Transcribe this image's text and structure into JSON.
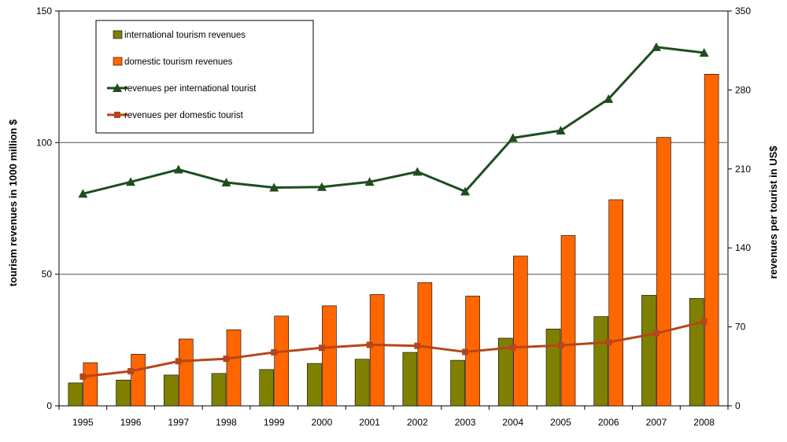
{
  "chart_data": {
    "type": "bar",
    "categories": [
      "1995",
      "1996",
      "1997",
      "1998",
      "1999",
      "2000",
      "2001",
      "2002",
      "2003",
      "2004",
      "2005",
      "2006",
      "2007",
      "2008"
    ],
    "series": [
      {
        "name": "international tourism revenues",
        "kind": "bar",
        "axis": "left",
        "color": "#808000",
        "values": [
          8.7,
          9.8,
          11.7,
          12.3,
          13.8,
          16.1,
          17.7,
          20.3,
          17.3,
          25.7,
          29.2,
          33.9,
          42.0,
          40.8
        ]
      },
      {
        "name": "domestic tourism revenues",
        "kind": "bar",
        "axis": "left",
        "color": "#FF6600",
        "values": [
          16.4,
          19.6,
          25.4,
          28.9,
          34.1,
          38.0,
          42.3,
          46.8,
          41.7,
          56.9,
          64.7,
          78.3,
          102.0,
          126.0
        ]
      },
      {
        "name": "revenues per international tourist",
        "kind": "line",
        "axis": "right",
        "color": "#1E4D1E",
        "marker": "triangle",
        "values": [
          188,
          198.5,
          209.5,
          198,
          193.5,
          194,
          198.5,
          207.5,
          190,
          237.5,
          244,
          272,
          318,
          313
        ]
      },
      {
        "name": "revenues per domestic tourist",
        "kind": "line",
        "axis": "right",
        "color": "#B5461A",
        "marker": "square",
        "values": [
          25.9,
          30.7,
          39.5,
          41.7,
          47.4,
          51.4,
          54.1,
          53.2,
          47.8,
          51.8,
          53.6,
          56.4,
          64.2,
          74.7
        ]
      }
    ],
    "ylabel": "tourism revenues in 1000 million $",
    "y2label": "revenues per tourist in US$",
    "ylim": [
      0,
      150
    ],
    "yticks": [
      "0",
      "50",
      "100",
      "150"
    ],
    "y2lim": [
      0,
      350
    ],
    "y2ticks": [
      "0",
      "70",
      "140",
      "210",
      "280",
      "350"
    ],
    "gridlines": [
      50,
      100
    ],
    "legend_position": "top-left"
  }
}
